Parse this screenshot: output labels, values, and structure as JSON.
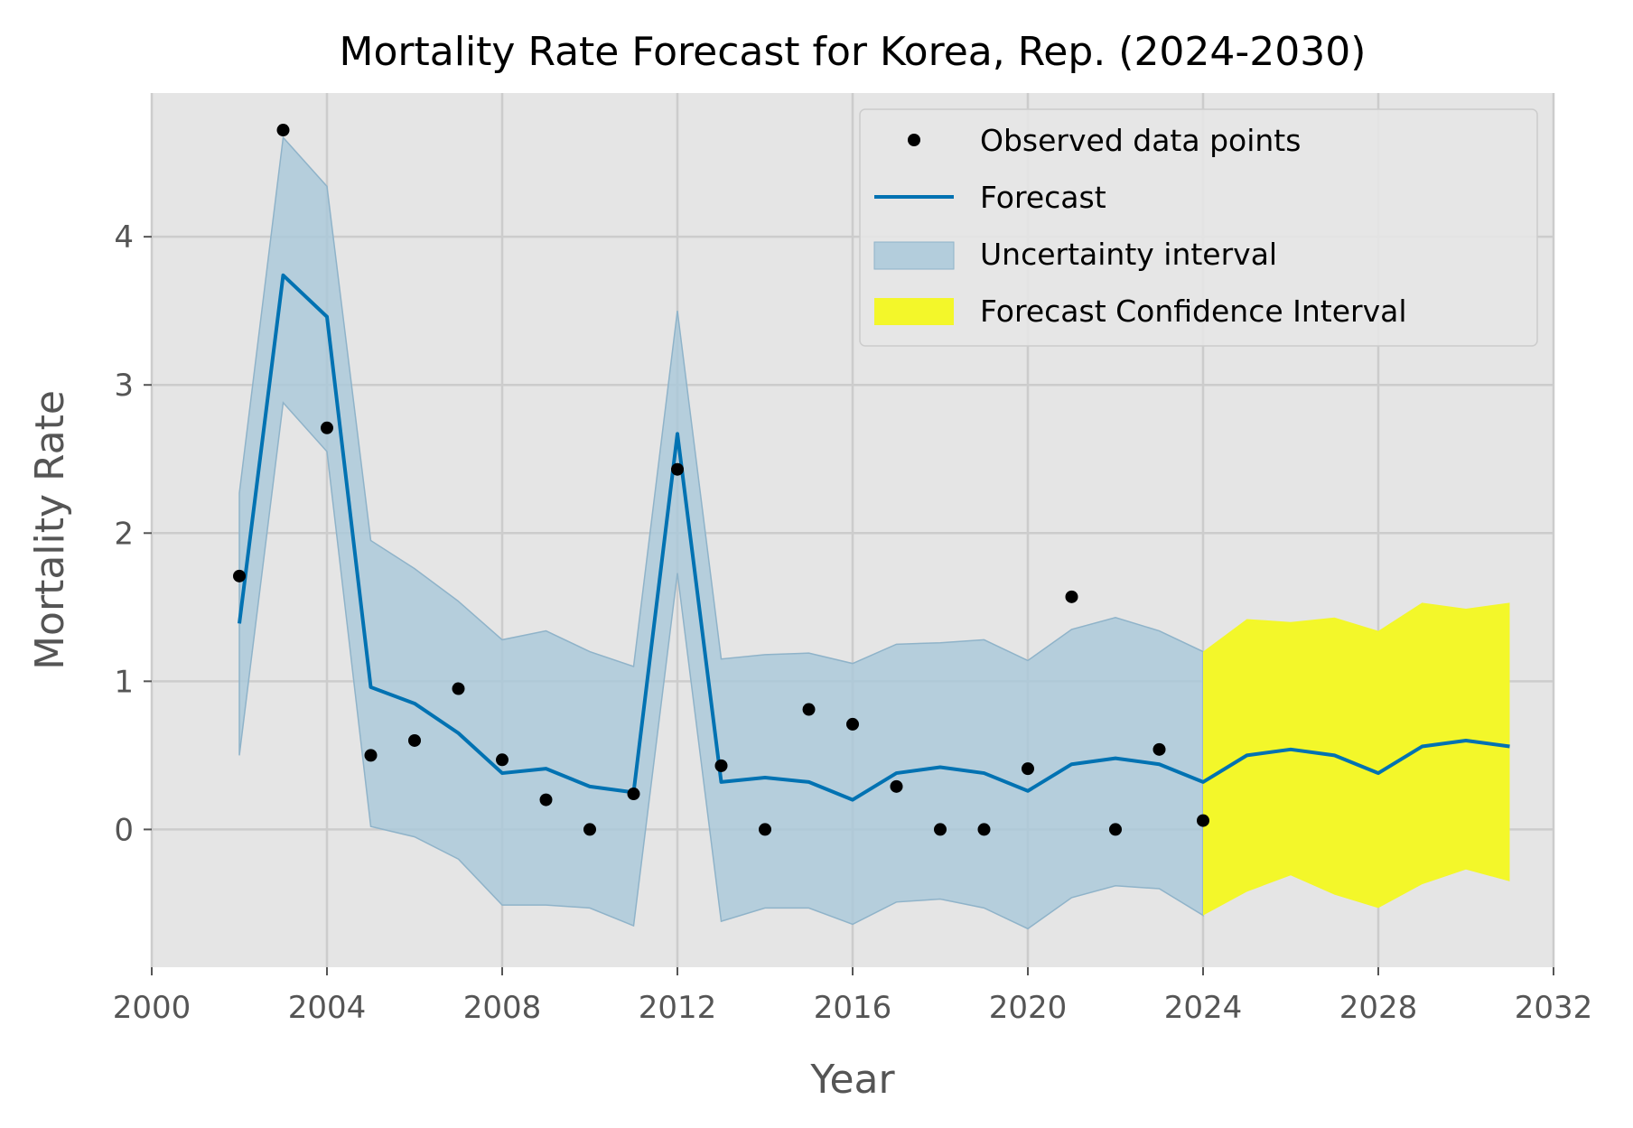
{
  "chart_data": {
    "type": "line",
    "title": "Mortality Rate Forecast for Korea, Rep. (2024-2030)",
    "xlabel": "Year",
    "ylabel": "Mortality Rate",
    "xlim": [
      2000,
      2032
    ],
    "ylim": [
      -0.93,
      4.97
    ],
    "x_ticks": [
      2000,
      2004,
      2008,
      2012,
      2016,
      2020,
      2024,
      2028,
      2032
    ],
    "y_ticks": [
      0,
      1,
      2,
      3,
      4
    ],
    "grid": true,
    "legend_position": "top-right",
    "colors": {
      "background": "#e5e5e5",
      "grid": "#cccccc",
      "observed": "#000000",
      "forecast_line": "#0072b2",
      "uncertainty_fill": "#a9c8d9",
      "forecast_ci_fill": "#f3f72a"
    },
    "legend": [
      {
        "label": "Observed data points",
        "kind": "point"
      },
      {
        "label": "Forecast",
        "kind": "line"
      },
      {
        "label": "Uncertainty interval",
        "kind": "uncertainty"
      },
      {
        "label": "Forecast Confidence Interval",
        "kind": "forecast_ci"
      }
    ],
    "observed": {
      "x": [
        2002,
        2003,
        2004,
        2005,
        2006,
        2007,
        2008,
        2009,
        2010,
        2011,
        2012,
        2013,
        2014,
        2015,
        2016,
        2017,
        2018,
        2019,
        2020,
        2021,
        2022,
        2023,
        2024
      ],
      "y": [
        1.71,
        4.72,
        2.71,
        0.5,
        0.6,
        0.95,
        0.47,
        0.2,
        0.0,
        0.24,
        2.43,
        0.43,
        0.0,
        0.81,
        0.71,
        0.29,
        0.0,
        0.0,
        0.41,
        1.57,
        0.0,
        0.54,
        0.06
      ]
    },
    "forecast": {
      "x": [
        2002,
        2003,
        2004,
        2005,
        2006,
        2007,
        2008,
        2009,
        2010,
        2011,
        2012,
        2013,
        2014,
        2015,
        2016,
        2017,
        2018,
        2019,
        2020,
        2021,
        2022,
        2023,
        2024,
        2025,
        2026,
        2027,
        2028,
        2029,
        2030,
        2031
      ],
      "y": [
        1.39,
        3.74,
        3.46,
        0.96,
        0.85,
        0.65,
        0.38,
        0.41,
        0.29,
        0.25,
        2.67,
        0.32,
        0.35,
        0.32,
        0.2,
        0.38,
        0.42,
        0.38,
        0.26,
        0.44,
        0.48,
        0.44,
        0.32,
        0.5,
        0.54,
        0.5,
        0.38,
        0.56,
        0.6,
        0.56
      ],
      "lower": [
        0.5,
        2.88,
        2.55,
        0.02,
        -0.05,
        -0.2,
        -0.51,
        -0.51,
        -0.53,
        -0.65,
        1.73,
        -0.62,
        -0.53,
        -0.53,
        -0.64,
        -0.49,
        -0.47,
        -0.53,
        -0.67,
        -0.46,
        -0.38,
        -0.4,
        -0.58,
        -0.42,
        -0.31,
        -0.44,
        -0.53,
        -0.37,
        -0.27,
        -0.35
      ],
      "upper": [
        2.27,
        4.67,
        4.34,
        1.95,
        1.76,
        1.54,
        1.28,
        1.34,
        1.2,
        1.1,
        3.5,
        1.15,
        1.18,
        1.19,
        1.12,
        1.25,
        1.26,
        1.28,
        1.14,
        1.35,
        1.43,
        1.34,
        1.2,
        1.42,
        1.4,
        1.43,
        1.34,
        1.53,
        1.49,
        1.53
      ]
    }
  }
}
